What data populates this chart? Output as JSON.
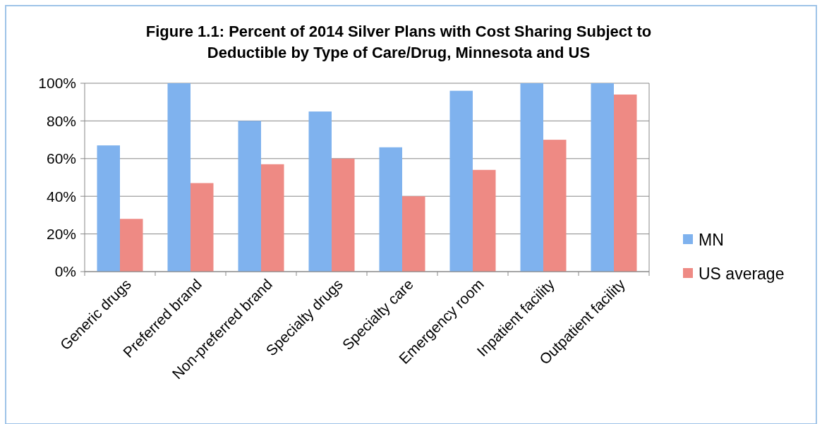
{
  "chart_data": {
    "type": "bar",
    "title": "Figure 1.1: Percent of 2014 Silver Plans with Cost Sharing Subject to Deductible by Type of Care/Drug, Minnesota and US",
    "categories": [
      "Generic drugs",
      "Preferred brand",
      "Non-preferred brand",
      "Specialty drugs",
      "Specialty care",
      "Emergency room",
      "Inpatient facility",
      "Outpatient facility"
    ],
    "series": [
      {
        "name": "MN",
        "color": "#7fb2ee",
        "values": [
          67,
          100,
          80,
          85,
          66,
          96,
          100,
          100
        ]
      },
      {
        "name": "US average",
        "color": "#ee8a84",
        "values": [
          28,
          47,
          57,
          60,
          40,
          54,
          70,
          94
        ]
      }
    ],
    "ylim": [
      0,
      100
    ],
    "yticks": [
      {
        "value": 0,
        "label": "0%"
      },
      {
        "value": 20,
        "label": "20%"
      },
      {
        "value": 40,
        "label": "40%"
      },
      {
        "value": 60,
        "label": "60%"
      },
      {
        "value": 80,
        "label": "80%"
      },
      {
        "value": 100,
        "label": "100%"
      }
    ],
    "grid": "y",
    "legend": "right"
  }
}
